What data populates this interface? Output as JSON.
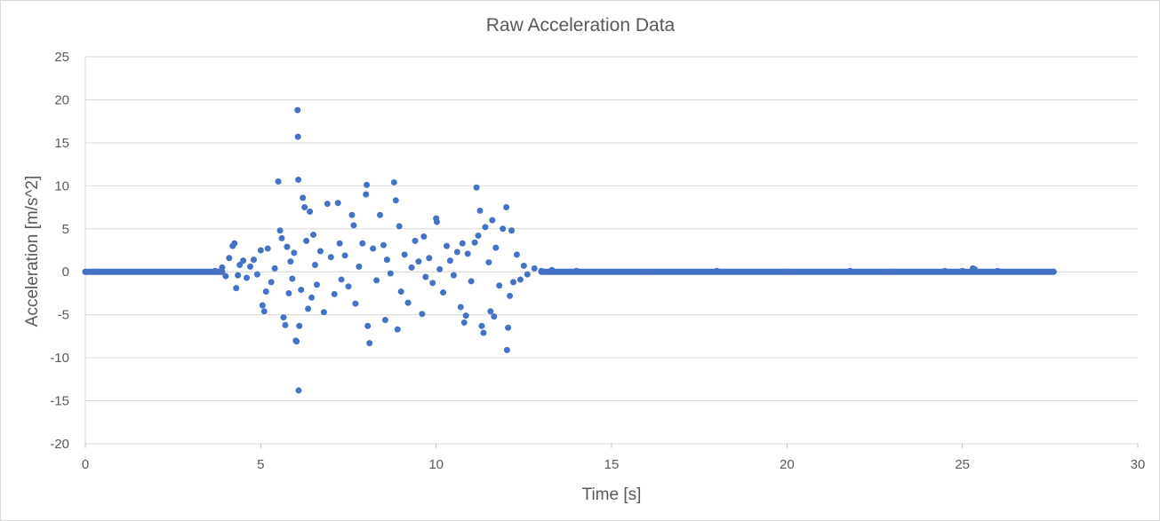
{
  "chart_data": {
    "type": "scatter",
    "title": "Raw Acceleration Data",
    "xlabel": "Time [s]",
    "ylabel": "Acceleration [m/s^2]",
    "xlim": [
      0,
      30
    ],
    "ylim": [
      -20,
      25
    ],
    "x_ticks": [
      0,
      5,
      10,
      15,
      20,
      25,
      30
    ],
    "y_ticks": [
      25,
      20,
      15,
      10,
      5,
      0,
      -5,
      -10,
      -15,
      -20
    ],
    "grid": "horizontal",
    "legend": "none",
    "color": "#4472C4",
    "baseline_segments": [
      {
        "x_start": 0,
        "x_end": 3.9,
        "y": 0
      },
      {
        "x_start": 13.0,
        "x_end": 27.6,
        "y": 0
      }
    ],
    "points": [
      [
        0.0,
        0.0
      ],
      [
        0.3,
        0.0
      ],
      [
        3.7,
        0.1
      ],
      [
        3.9,
        0.5
      ],
      [
        4.0,
        -0.5
      ],
      [
        4.1,
        1.6
      ],
      [
        4.2,
        3.0
      ],
      [
        4.25,
        3.3
      ],
      [
        4.3,
        -1.9
      ],
      [
        4.35,
        -0.4
      ],
      [
        4.4,
        0.8
      ],
      [
        4.5,
        1.3
      ],
      [
        4.6,
        -0.7
      ],
      [
        4.7,
        0.6
      ],
      [
        4.8,
        1.4
      ],
      [
        4.9,
        -0.3
      ],
      [
        5.0,
        2.5
      ],
      [
        5.05,
        -3.9
      ],
      [
        5.1,
        -4.6
      ],
      [
        5.15,
        -2.3
      ],
      [
        5.2,
        2.7
      ],
      [
        5.3,
        -1.2
      ],
      [
        5.4,
        0.4
      ],
      [
        5.5,
        10.5
      ],
      [
        5.55,
        4.8
      ],
      [
        5.6,
        3.9
      ],
      [
        5.65,
        -5.3
      ],
      [
        5.7,
        -6.2
      ],
      [
        5.75,
        2.9
      ],
      [
        5.8,
        -2.5
      ],
      [
        5.85,
        1.2
      ],
      [
        5.9,
        -0.8
      ],
      [
        5.95,
        2.2
      ],
      [
        6.0,
        -8.0
      ],
      [
        6.02,
        -8.1
      ],
      [
        6.05,
        18.8
      ],
      [
        6.06,
        15.7
      ],
      [
        6.07,
        10.7
      ],
      [
        6.08,
        -13.8
      ],
      [
        6.1,
        -6.3
      ],
      [
        6.15,
        -2.1
      ],
      [
        6.2,
        8.6
      ],
      [
        6.25,
        7.5
      ],
      [
        6.3,
        3.6
      ],
      [
        6.35,
        -4.3
      ],
      [
        6.4,
        7.0
      ],
      [
        6.45,
        -3.0
      ],
      [
        6.5,
        4.3
      ],
      [
        6.55,
        0.8
      ],
      [
        6.6,
        -1.5
      ],
      [
        6.7,
        2.4
      ],
      [
        6.8,
        -4.7
      ],
      [
        6.9,
        7.9
      ],
      [
        7.0,
        1.7
      ],
      [
        7.1,
        -2.6
      ],
      [
        7.2,
        8.0
      ],
      [
        7.25,
        3.3
      ],
      [
        7.3,
        -0.9
      ],
      [
        7.4,
        1.9
      ],
      [
        7.5,
        -1.7
      ],
      [
        7.6,
        6.6
      ],
      [
        7.65,
        5.4
      ],
      [
        7.7,
        -3.7
      ],
      [
        7.8,
        0.6
      ],
      [
        7.9,
        3.3
      ],
      [
        8.0,
        9.0
      ],
      [
        8.02,
        10.1
      ],
      [
        8.05,
        -6.3
      ],
      [
        8.1,
        -8.3
      ],
      [
        8.2,
        2.7
      ],
      [
        8.3,
        -1.0
      ],
      [
        8.4,
        6.6
      ],
      [
        8.5,
        3.1
      ],
      [
        8.55,
        -5.6
      ],
      [
        8.6,
        1.4
      ],
      [
        8.7,
        -0.2
      ],
      [
        8.8,
        10.4
      ],
      [
        8.85,
        8.3
      ],
      [
        8.9,
        -6.7
      ],
      [
        8.95,
        5.3
      ],
      [
        9.0,
        -2.3
      ],
      [
        9.1,
        2.0
      ],
      [
        9.2,
        -3.6
      ],
      [
        9.3,
        0.5
      ],
      [
        9.4,
        3.6
      ],
      [
        9.5,
        1.2
      ],
      [
        9.6,
        -4.9
      ],
      [
        9.65,
        4.1
      ],
      [
        9.7,
        -0.6
      ],
      [
        9.8,
        1.6
      ],
      [
        9.9,
        -1.3
      ],
      [
        10.0,
        6.2
      ],
      [
        10.02,
        5.8
      ],
      [
        10.1,
        0.3
      ],
      [
        10.2,
        -2.4
      ],
      [
        10.3,
        3.0
      ],
      [
        10.4,
        1.3
      ],
      [
        10.5,
        -0.4
      ],
      [
        10.6,
        2.3
      ],
      [
        10.7,
        -4.1
      ],
      [
        10.75,
        3.3
      ],
      [
        10.8,
        -5.9
      ],
      [
        10.85,
        -5.1
      ],
      [
        10.9,
        2.1
      ],
      [
        11.0,
        -1.1
      ],
      [
        11.1,
        3.4
      ],
      [
        11.15,
        9.8
      ],
      [
        11.2,
        4.2
      ],
      [
        11.25,
        7.1
      ],
      [
        11.3,
        -6.3
      ],
      [
        11.35,
        -7.1
      ],
      [
        11.4,
        5.2
      ],
      [
        11.5,
        1.1
      ],
      [
        11.55,
        -4.6
      ],
      [
        11.6,
        6.0
      ],
      [
        11.65,
        -5.2
      ],
      [
        11.7,
        2.8
      ],
      [
        11.8,
        -1.6
      ],
      [
        11.9,
        5.0
      ],
      [
        12.0,
        7.5
      ],
      [
        12.02,
        -9.1
      ],
      [
        12.05,
        -6.5
      ],
      [
        12.1,
        -2.8
      ],
      [
        12.15,
        4.8
      ],
      [
        12.2,
        -1.2
      ],
      [
        12.3,
        2.0
      ],
      [
        12.4,
        -0.9
      ],
      [
        12.5,
        0.7
      ],
      [
        12.6,
        -0.3
      ],
      [
        12.8,
        0.4
      ],
      [
        13.0,
        0.1
      ],
      [
        13.3,
        0.2
      ],
      [
        14.0,
        0.1
      ],
      [
        16.0,
        0.0
      ],
      [
        18.0,
        0.1
      ],
      [
        20.0,
        0.0
      ],
      [
        21.8,
        0.1
      ],
      [
        23.0,
        0.0
      ],
      [
        24.5,
        0.1
      ],
      [
        25.0,
        0.1
      ],
      [
        25.3,
        0.4
      ],
      [
        25.35,
        0.3
      ],
      [
        26.0,
        0.1
      ],
      [
        27.6,
        0.0
      ]
    ]
  }
}
